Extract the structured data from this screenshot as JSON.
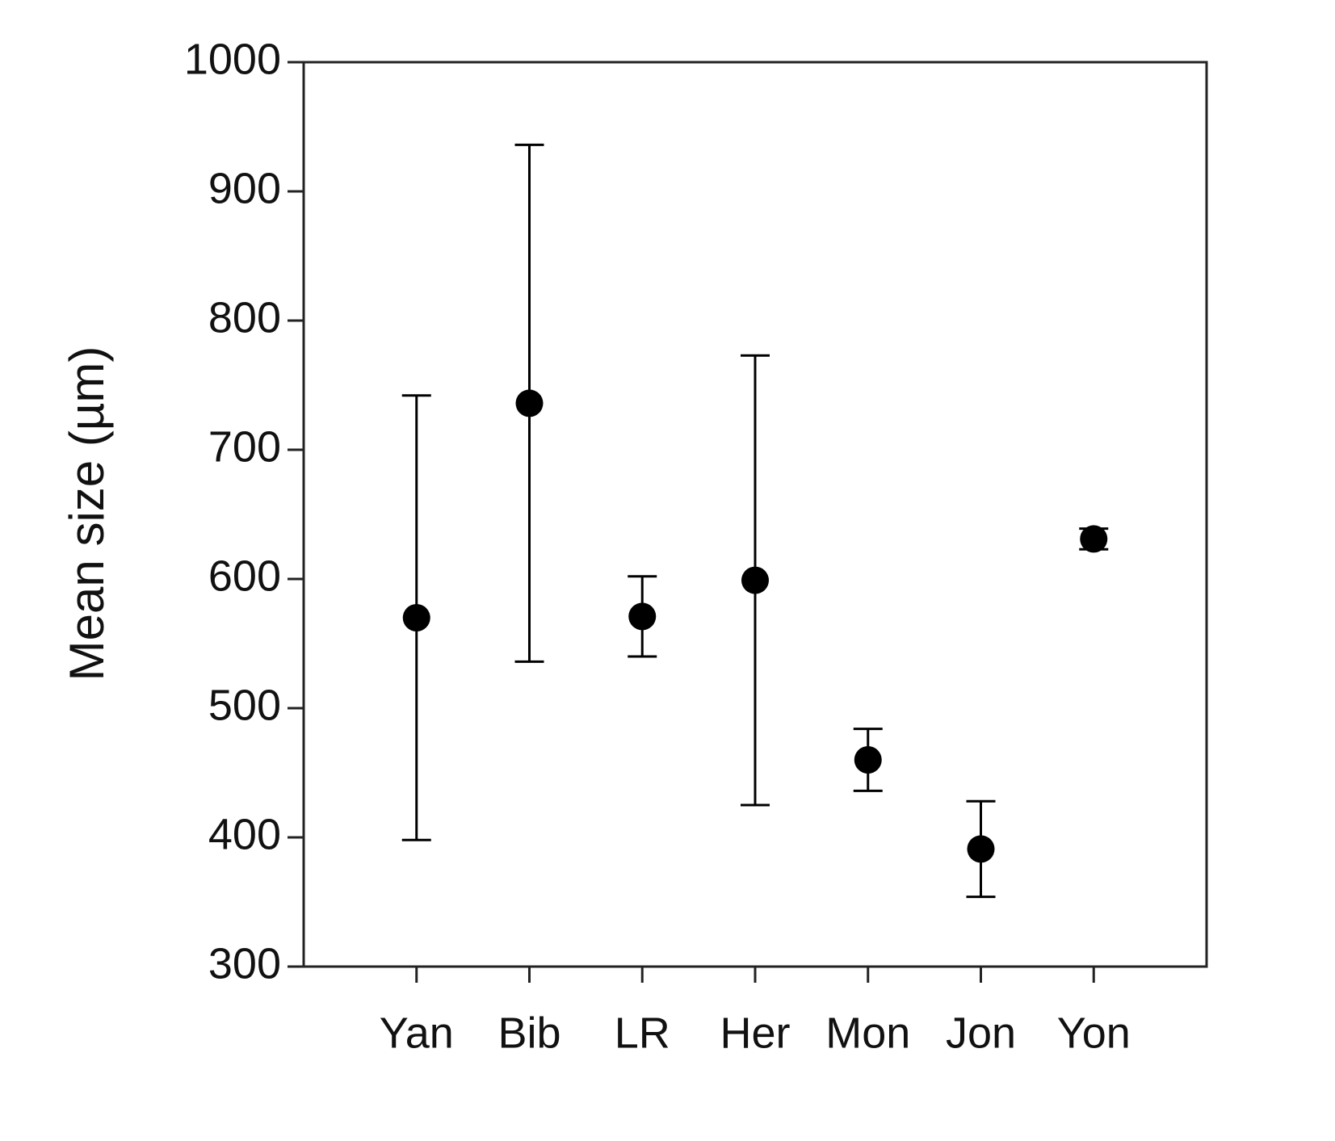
{
  "chart_data": {
    "type": "errorbar",
    "ylabel": "Mean size (µm)",
    "categories": [
      "Yan",
      "Bib",
      "LR",
      "Her",
      "Mon",
      "Jon",
      "Yon"
    ],
    "values": [
      570,
      736,
      571,
      599,
      460,
      391,
      631
    ],
    "errors": [
      172,
      200,
      31,
      174,
      24,
      37,
      8
    ],
    "color": "#000000",
    "ylim": [
      300,
      1000
    ],
    "yticks": [
      300,
      400,
      500,
      600,
      700,
      800,
      900,
      1000
    ]
  }
}
